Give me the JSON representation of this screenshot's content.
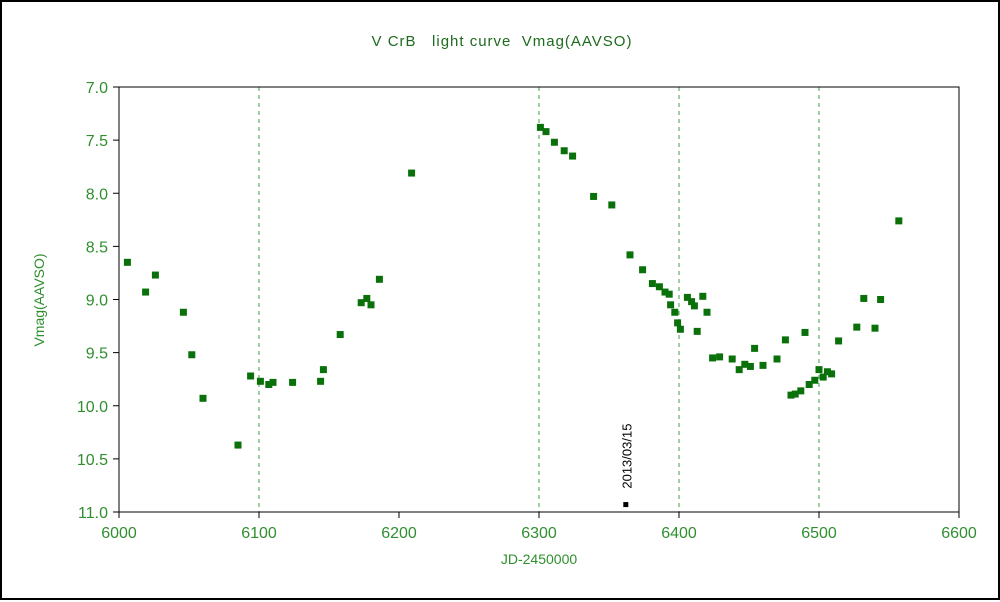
{
  "chart_data": {
    "type": "scatter",
    "title": "V CrB   light curve  Vmag(AAVSO)",
    "xlabel": "JD-2450000",
    "ylabel": "Vmag(AAVSO)",
    "xlim": [
      6000,
      6600
    ],
    "ylim": [
      7.0,
      11.0
    ],
    "y_axis_inverted": true,
    "x_ticks": [
      6000,
      6100,
      6200,
      6300,
      6400,
      6500,
      6600
    ],
    "y_ticks": [
      7.0,
      7.5,
      8.0,
      8.5,
      9.0,
      9.5,
      10.0,
      10.5,
      11.0
    ],
    "x_gridlines": [
      6100,
      6300,
      6400,
      6500
    ],
    "grid_on": true,
    "legend": "none",
    "marker_shape": "square",
    "colors": {
      "marker_green": "#0a700a",
      "label_green": "#2f8f2f",
      "title_green": "#1e6b1e",
      "grid_green": "#3aa03a",
      "axis_black": "#000000",
      "annotation_black": "#000000",
      "background": "#ffffff"
    },
    "points": [
      [
        6006,
        8.65
      ],
      [
        6019,
        8.93
      ],
      [
        6026,
        8.77
      ],
      [
        6046,
        9.12
      ],
      [
        6052,
        9.52
      ],
      [
        6060,
        9.93
      ],
      [
        6085,
        10.37
      ],
      [
        6094,
        9.72
      ],
      [
        6101,
        9.77
      ],
      [
        6107,
        9.8
      ],
      [
        6110,
        9.78
      ],
      [
        6124,
        9.78
      ],
      [
        6144,
        9.77
      ],
      [
        6146,
        9.66
      ],
      [
        6158,
        9.33
      ],
      [
        6173,
        9.03
      ],
      [
        6177,
        8.99
      ],
      [
        6180,
        9.05
      ],
      [
        6186,
        8.81
      ],
      [
        6209,
        7.81
      ],
      [
        6301,
        7.38
      ],
      [
        6305,
        7.42
      ],
      [
        6311,
        7.52
      ],
      [
        6318,
        7.6
      ],
      [
        6324,
        7.65
      ],
      [
        6339,
        8.03
      ],
      [
        6352,
        8.11
      ],
      [
        6365,
        8.58
      ],
      [
        6374,
        8.72
      ],
      [
        6381,
        8.85
      ],
      [
        6386,
        8.88
      ],
      [
        6390,
        8.93
      ],
      [
        6393,
        8.95
      ],
      [
        6394,
        9.05
      ],
      [
        6397,
        9.12
      ],
      [
        6399,
        9.22
      ],
      [
        6401,
        9.28
      ],
      [
        6406,
        8.98
      ],
      [
        6409,
        9.02
      ],
      [
        6411,
        9.06
      ],
      [
        6413,
        9.3
      ],
      [
        6417,
        8.97
      ],
      [
        6420,
        9.12
      ],
      [
        6424,
        9.55
      ],
      [
        6429,
        9.54
      ],
      [
        6438,
        9.56
      ],
      [
        6443,
        9.66
      ],
      [
        6447,
        9.61
      ],
      [
        6451,
        9.63
      ],
      [
        6454,
        9.46
      ],
      [
        6460,
        9.62
      ],
      [
        6470,
        9.56
      ],
      [
        6476,
        9.38
      ],
      [
        6480,
        9.9
      ],
      [
        6483,
        9.89
      ],
      [
        6487,
        9.86
      ],
      [
        6490,
        9.31
      ],
      [
        6493,
        9.8
      ],
      [
        6497,
        9.76
      ],
      [
        6500,
        9.66
      ],
      [
        6503,
        9.73
      ],
      [
        6506,
        9.68
      ],
      [
        6509,
        9.7
      ],
      [
        6514,
        9.39
      ],
      [
        6527,
        9.26
      ],
      [
        6532,
        8.99
      ],
      [
        6540,
        9.27
      ],
      [
        6544,
        9.0
      ],
      [
        6557,
        8.26
      ]
    ],
    "annotation": {
      "label": "2013/03/15",
      "x": 6366,
      "y": 10.78,
      "marker_x": 6362,
      "marker_y": 10.93
    }
  }
}
